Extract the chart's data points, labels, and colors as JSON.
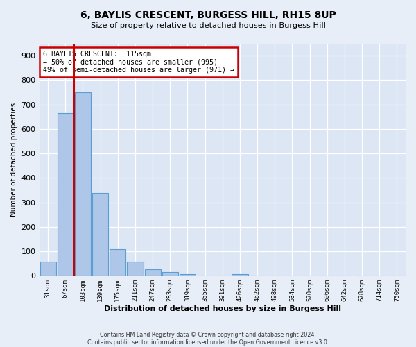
{
  "title": "6, BAYLIS CRESCENT, BURGESS HILL, RH15 8UP",
  "subtitle": "Size of property relative to detached houses in Burgess Hill",
  "xlabel": "Distribution of detached houses by size in Burgess Hill",
  "ylabel": "Number of detached properties",
  "footer1": "Contains HM Land Registry data © Crown copyright and database right 2024.",
  "footer2": "Contains public sector information licensed under the Open Government Licence v3.0.",
  "bin_labels": [
    "31sqm",
    "67sqm",
    "103sqm",
    "139sqm",
    "175sqm",
    "211sqm",
    "247sqm",
    "283sqm",
    "319sqm",
    "355sqm",
    "391sqm",
    "426sqm",
    "462sqm",
    "498sqm",
    "534sqm",
    "570sqm",
    "606sqm",
    "642sqm",
    "678sqm",
    "714sqm",
    "750sqm"
  ],
  "bar_values": [
    57,
    665,
    750,
    338,
    108,
    57,
    27,
    14,
    8,
    0,
    0,
    8,
    0,
    0,
    0,
    0,
    0,
    0,
    0,
    0,
    0
  ],
  "vline_position": 1.5,
  "bar_color": "#aec6e8",
  "bar_edge_color": "#5a9fd4",
  "vline_color": "#cc0000",
  "annotation_line1": "6 BAYLIS CRESCENT:  115sqm",
  "annotation_line2": "← 50% of detached houses are smaller (995)",
  "annotation_line3": "49% of semi-detached houses are larger (971) →",
  "annotation_box_color": "#ffffff",
  "annotation_box_edge_color": "#cc0000",
  "bg_color": "#e8eef7",
  "plot_bg_color": "#dce6f5",
  "ylim": [
    0,
    950
  ],
  "yticks": [
    0,
    100,
    200,
    300,
    400,
    500,
    600,
    700,
    800,
    900
  ]
}
